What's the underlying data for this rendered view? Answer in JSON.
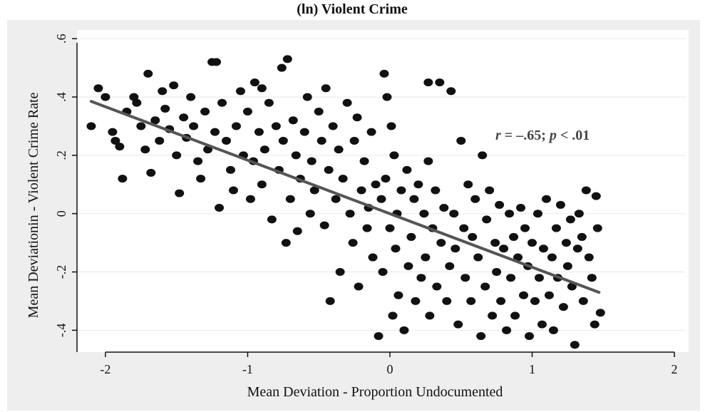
{
  "chart_data": {
    "type": "scatter",
    "title": "(ln) Violent Crime",
    "xlabel": "Mean Deviation - Proportion Undocumented",
    "ylabel": "Mean Deviationin - Violent Crime Rate",
    "xlim": [
      -2.2,
      2.08
    ],
    "ylim": [
      -0.475,
      0.63
    ],
    "xticks": [
      -2,
      -1,
      0,
      1,
      2
    ],
    "xtick_labels": [
      "-2",
      "-1",
      "0",
      "1",
      "2"
    ],
    "yticks": [
      -0.4,
      -0.2,
      0,
      0.2,
      0.4,
      0.6
    ],
    "ytick_labels": [
      "-.4",
      "-.2",
      "0",
      ".2",
      ".4",
      ".6"
    ],
    "grid": true,
    "colors": {
      "points": "#111111",
      "fit_line": "#555555",
      "grid": "#e8e8e8",
      "plot_bg": "#ffffff",
      "outer_bg": "#eeeeee"
    },
    "annotation": {
      "r_var": "r",
      "r_text": " = –.65; ",
      "p_var": "p",
      "p_text": " < .01",
      "x": 0.75,
      "y": 0.28
    },
    "fit_line": {
      "x": [
        -2.1,
        1.47
      ],
      "y": [
        0.385,
        -0.27
      ]
    },
    "points": [
      [
        -2.1,
        0.3
      ],
      [
        -2.05,
        0.43
      ],
      [
        -2.0,
        0.4
      ],
      [
        -1.95,
        0.28
      ],
      [
        -1.93,
        0.25
      ],
      [
        -1.9,
        0.23
      ],
      [
        -1.88,
        0.12
      ],
      [
        -1.85,
        0.35
      ],
      [
        -1.8,
        0.4
      ],
      [
        -1.78,
        0.38
      ],
      [
        -1.75,
        0.3
      ],
      [
        -1.72,
        0.22
      ],
      [
        -1.7,
        0.48
      ],
      [
        -1.68,
        0.14
      ],
      [
        -1.65,
        0.32
      ],
      [
        -1.62,
        0.25
      ],
      [
        -1.6,
        0.42
      ],
      [
        -1.58,
        0.36
      ],
      [
        -1.55,
        0.29
      ],
      [
        -1.52,
        0.44
      ],
      [
        -1.5,
        0.2
      ],
      [
        -1.48,
        0.07
      ],
      [
        -1.45,
        0.33
      ],
      [
        -1.43,
        0.26
      ],
      [
        -1.4,
        0.4
      ],
      [
        -1.38,
        0.3
      ],
      [
        -1.35,
        0.18
      ],
      [
        -1.33,
        0.12
      ],
      [
        -1.3,
        0.35
      ],
      [
        -1.28,
        0.22
      ],
      [
        -1.25,
        0.52
      ],
      [
        -1.23,
        0.28
      ],
      [
        -1.2,
        0.02
      ],
      [
        -1.18,
        0.38
      ],
      [
        -1.15,
        0.25
      ],
      [
        -1.12,
        0.15
      ],
      [
        -1.1,
        0.08
      ],
      [
        -1.08,
        0.3
      ],
      [
        -1.05,
        0.42
      ],
      [
        -1.03,
        0.2
      ],
      [
        -1.0,
        0.35
      ],
      [
        -0.98,
        0.05
      ],
      [
        -0.96,
        0.18
      ],
      [
        -0.95,
        0.45
      ],
      [
        -0.92,
        0.28
      ],
      [
        -0.9,
        0.1
      ],
      [
        -0.88,
        0.22
      ],
      [
        -0.85,
        0.38
      ],
      [
        -0.83,
        -0.02
      ],
      [
        -0.8,
        0.3
      ],
      [
        -0.78,
        0.15
      ],
      [
        -0.76,
        0.5
      ],
      [
        -0.75,
        0.25
      ],
      [
        -0.73,
        -0.1
      ],
      [
        -0.72,
        0.53
      ],
      [
        -0.7,
        0.05
      ],
      [
        -0.68,
        0.32
      ],
      [
        -0.66,
        0.2
      ],
      [
        -0.65,
        -0.06
      ],
      [
        -0.63,
        0.12
      ],
      [
        -0.6,
        0.28
      ],
      [
        -0.58,
        0.4
      ],
      [
        -0.56,
        0.0
      ],
      [
        -0.55,
        0.18
      ],
      [
        -0.53,
        0.08
      ],
      [
        -0.5,
        0.35
      ],
      [
        -0.48,
        0.25
      ],
      [
        -0.46,
        -0.04
      ],
      [
        -0.45,
        0.43
      ],
      [
        -0.43,
        0.15
      ],
      [
        -0.42,
        -0.3
      ],
      [
        -0.4,
        0.3
      ],
      [
        -0.38,
        0.05
      ],
      [
        -0.36,
        0.22
      ],
      [
        -0.35,
        -0.2
      ],
      [
        -0.33,
        0.12
      ],
      [
        -0.3,
        0.38
      ],
      [
        -0.28,
        0.0
      ],
      [
        -0.26,
        -0.1
      ],
      [
        -0.25,
        0.25
      ],
      [
        -0.23,
        0.33
      ],
      [
        -0.22,
        -0.25
      ],
      [
        -0.2,
        0.08
      ],
      [
        -0.18,
        0.18
      ],
      [
        -0.16,
        -0.05
      ],
      [
        -0.15,
        0.02
      ],
      [
        -0.13,
        0.28
      ],
      [
        -0.12,
        -0.15
      ],
      [
        -0.1,
        0.1
      ],
      [
        -0.08,
        -0.42
      ],
      [
        -0.06,
        0.05
      ],
      [
        -0.05,
        -0.2
      ],
      [
        -0.04,
        0.48
      ],
      [
        -0.03,
        0.12
      ],
      [
        -0.02,
        0.4
      ],
      [
        0.0,
        -0.05
      ],
      [
        0.01,
        0.3
      ],
      [
        0.02,
        -0.35
      ],
      [
        0.03,
        0.2
      ],
      [
        0.04,
        -0.12
      ],
      [
        0.05,
        0.0
      ],
      [
        0.06,
        -0.28
      ],
      [
        0.08,
        0.08
      ],
      [
        0.1,
        -0.4
      ],
      [
        0.12,
        0.15
      ],
      [
        0.13,
        -0.18
      ],
      [
        0.15,
        -0.08
      ],
      [
        0.17,
        0.05
      ],
      [
        0.18,
        -0.3
      ],
      [
        0.2,
        0.1
      ],
      [
        0.22,
        -0.22
      ],
      [
        0.24,
        0.0
      ],
      [
        0.25,
        -0.15
      ],
      [
        0.27,
        0.18
      ],
      [
        0.28,
        -0.35
      ],
      [
        0.3,
        -0.05
      ],
      [
        0.32,
        0.08
      ],
      [
        0.33,
        -0.25
      ],
      [
        0.35,
        0.45
      ],
      [
        0.36,
        -0.1
      ],
      [
        0.38,
        0.02
      ],
      [
        0.4,
        -0.3
      ],
      [
        0.42,
        -0.18
      ],
      [
        0.43,
        0.42
      ],
      [
        0.45,
        0.0
      ],
      [
        0.46,
        -0.12
      ],
      [
        0.48,
        -0.38
      ],
      [
        0.5,
        0.25
      ],
      [
        0.52,
        -0.05
      ],
      [
        0.53,
        -0.22
      ],
      [
        0.55,
        0.1
      ],
      [
        0.57,
        -0.3
      ],
      [
        0.58,
        -0.08
      ],
      [
        0.6,
        0.05
      ],
      [
        0.62,
        -0.15
      ],
      [
        0.64,
        -0.42
      ],
      [
        0.65,
        0.2
      ],
      [
        0.67,
        -0.25
      ],
      [
        0.68,
        -0.02
      ],
      [
        0.7,
        0.08
      ],
      [
        0.72,
        -0.35
      ],
      [
        0.74,
        -0.1
      ],
      [
        0.75,
        -0.2
      ],
      [
        0.77,
        0.03
      ],
      [
        0.78,
        -0.3
      ],
      [
        0.8,
        -0.12
      ],
      [
        0.82,
        -0.4
      ],
      [
        0.84,
        0.0
      ],
      [
        0.85,
        -0.22
      ],
      [
        0.87,
        -0.08
      ],
      [
        0.88,
        -0.35
      ],
      [
        0.9,
        -0.15
      ],
      [
        0.92,
        0.02
      ],
      [
        0.94,
        -0.28
      ],
      [
        0.95,
        -0.05
      ],
      [
        0.97,
        -0.18
      ],
      [
        0.98,
        -0.42
      ],
      [
        1.0,
        -0.1
      ],
      [
        1.02,
        -0.3
      ],
      [
        1.04,
        0.0
      ],
      [
        1.05,
        -0.22
      ],
      [
        1.07,
        -0.38
      ],
      [
        1.08,
        -0.12
      ],
      [
        1.1,
        0.05
      ],
      [
        1.12,
        -0.28
      ],
      [
        1.14,
        -0.15
      ],
      [
        1.15,
        -0.4
      ],
      [
        1.17,
        -0.05
      ],
      [
        1.18,
        -0.22
      ],
      [
        1.2,
        0.03
      ],
      [
        1.22,
        -0.32
      ],
      [
        1.24,
        -0.1
      ],
      [
        1.25,
        -0.18
      ],
      [
        1.27,
        -0.02
      ],
      [
        1.28,
        -0.25
      ],
      [
        1.3,
        -0.45
      ],
      [
        1.32,
        -0.12
      ],
      [
        1.33,
        0.0
      ],
      [
        1.35,
        -0.08
      ],
      [
        1.36,
        -0.3
      ],
      [
        1.38,
        0.08
      ],
      [
        1.4,
        -0.15
      ],
      [
        1.42,
        -0.22
      ],
      [
        1.44,
        -0.38
      ],
      [
        1.46,
        -0.05
      ],
      [
        1.48,
        -0.34
      ],
      [
        1.45,
        0.06
      ],
      [
        -1.22,
        0.52
      ],
      [
        -0.9,
        0.43
      ],
      [
        0.27,
        0.45
      ]
    ]
  }
}
